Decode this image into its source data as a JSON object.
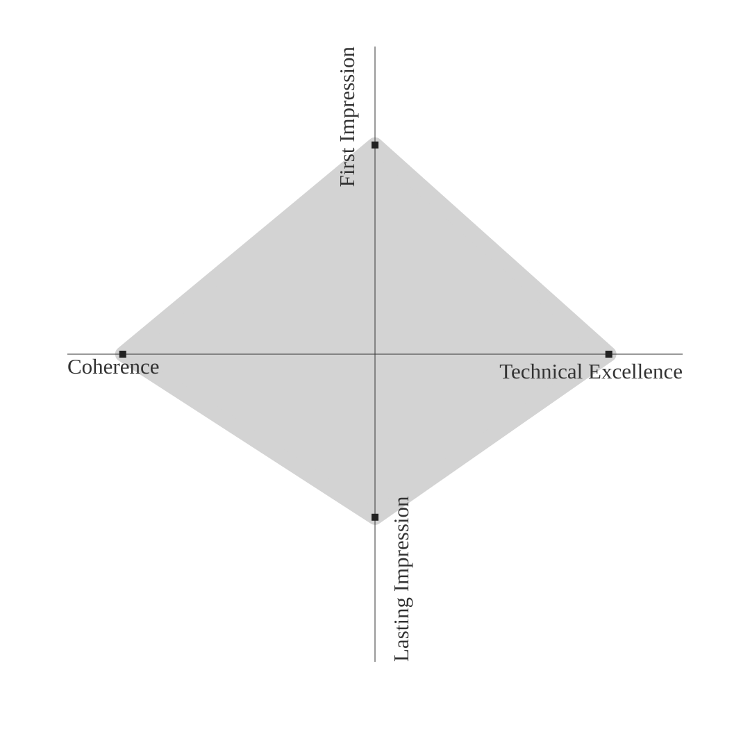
{
  "chart_data": {
    "type": "radar",
    "categories": [
      "First Impression",
      "Technical Excellence",
      "Lasting Impression",
      "Coherence"
    ],
    "values": [
      68,
      76,
      53,
      82
    ],
    "ylim": [
      0,
      100
    ],
    "color": "#d3d3d3",
    "marker_color": "#222222"
  }
}
